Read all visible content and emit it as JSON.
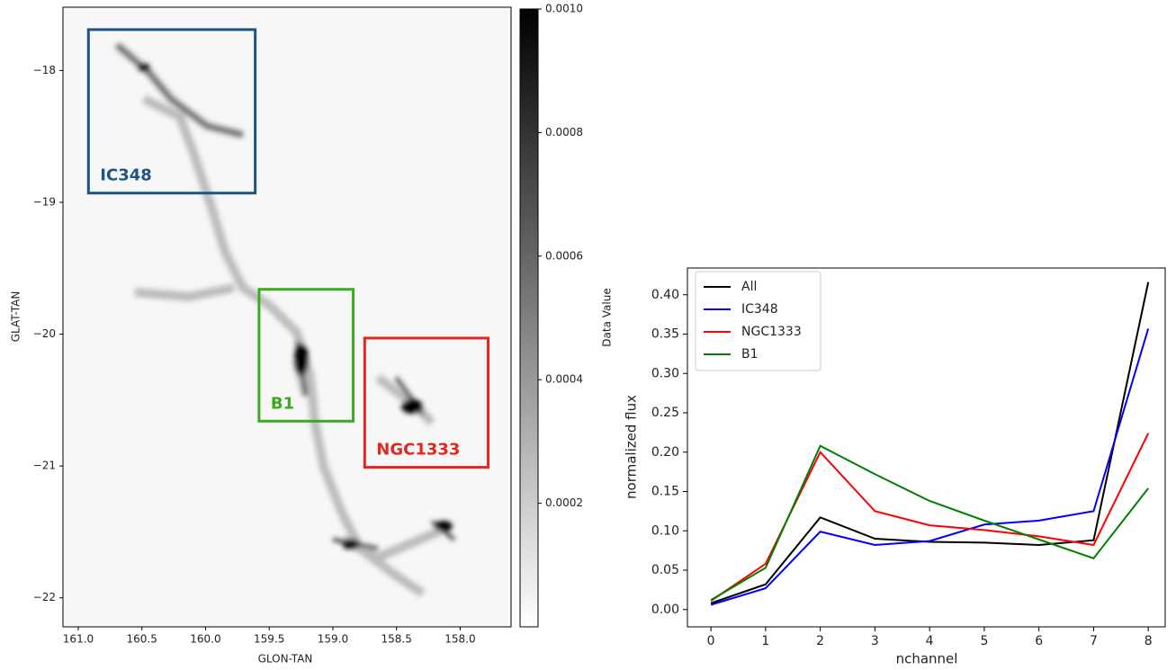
{
  "chart_data": [
    {
      "type": "image",
      "xlabel": "GLON-TAN",
      "ylabel": "GLAT-TAN",
      "xlim": [
        161.12,
        157.6
      ],
      "ylim": [
        -22.22,
        -17.52
      ],
      "xticks": [
        {
          "value": 161.0,
          "label": "161.0"
        },
        {
          "value": 160.5,
          "label": "160.5"
        },
        {
          "value": 160.0,
          "label": "160.0"
        },
        {
          "value": 159.5,
          "label": "159.5"
        },
        {
          "value": 159.0,
          "label": "159.0"
        },
        {
          "value": 158.5,
          "label": "158.5"
        },
        {
          "value": 158.0,
          "label": "158.0"
        }
      ],
      "yticks": [
        {
          "value": -18,
          "label": "−18"
        },
        {
          "value": -19,
          "label": "−19"
        },
        {
          "value": -20,
          "label": "−20"
        },
        {
          "value": -21,
          "label": "−21"
        },
        {
          "value": -22,
          "label": "−22"
        }
      ],
      "colorbar": {
        "label": "Data Value",
        "lim": [
          0,
          0.001
        ],
        "ticks": [
          0.0002,
          0.0004,
          0.0006,
          0.0008,
          {
            "value": 0.001,
            "label": "0.0010"
          }
        ]
      },
      "regions": [
        {
          "label": "IC348",
          "color": "#1f5483",
          "glon": [
            160.92,
            159.61
          ],
          "glat": [
            -18.93,
            -17.69
          ]
        },
        {
          "label": "B1",
          "color": "#3aaa1e",
          "glon": [
            159.58,
            158.84
          ],
          "glat": [
            -20.66,
            -19.66
          ]
        },
        {
          "label": "NGC1333",
          "color": "#e0281e",
          "glon": [
            158.75,
            157.78
          ],
          "glat": [
            -21.01,
            -20.03
          ]
        }
      ]
    },
    {
      "type": "line",
      "xlabel": "nchannel",
      "ylabel": "normalized flux",
      "x": [
        0,
        1,
        2,
        3,
        4,
        5,
        6,
        7,
        8
      ],
      "xlim": [
        -0.43,
        8.31
      ],
      "ylim": [
        -0.022,
        0.434
      ],
      "xticks": [
        0,
        1,
        2,
        3,
        4,
        5,
        6,
        7,
        8
      ],
      "yticks": [
        {
          "value": 0,
          "label": "0.00"
        },
        {
          "value": 0.05,
          "label": "0.05"
        },
        {
          "value": 0.1,
          "label": "0.10"
        },
        {
          "value": 0.15,
          "label": "0.15"
        },
        {
          "value": 0.2,
          "label": "0.20"
        },
        {
          "value": 0.25,
          "label": "0.25"
        },
        {
          "value": 0.3,
          "label": "0.30"
        },
        {
          "value": 0.35,
          "label": "0.35"
        },
        {
          "value": 0.4,
          "label": "0.40"
        }
      ],
      "legend": "upper left",
      "series": [
        {
          "name": "All",
          "color": "#000000",
          "values": [
            0.008,
            0.032,
            0.117,
            0.09,
            0.086,
            0.085,
            0.082,
            0.088,
            0.416
          ]
        },
        {
          "name": "IC348",
          "color": "#0000ff",
          "values": [
            0.006,
            0.027,
            0.099,
            0.082,
            0.087,
            0.108,
            0.113,
            0.125,
            0.357
          ]
        },
        {
          "name": "NGC1333",
          "color": "#ff0000",
          "values": [
            0.011,
            0.058,
            0.2,
            0.125,
            0.107,
            0.101,
            0.093,
            0.082,
            0.224
          ]
        },
        {
          "name": "B1",
          "color": "#008000",
          "values": [
            0.012,
            0.053,
            0.208,
            0.172,
            0.138,
            0.113,
            0.089,
            0.065,
            0.154
          ]
        }
      ]
    }
  ]
}
